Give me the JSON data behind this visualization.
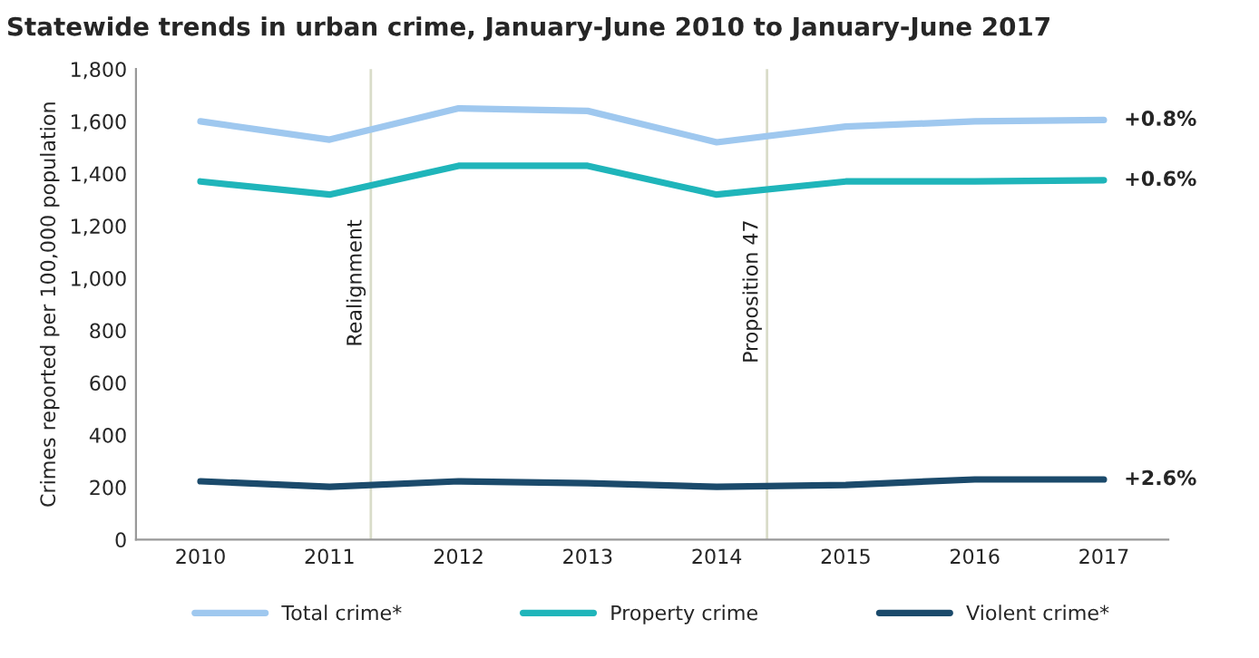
{
  "chart_data": {
    "type": "line",
    "title": "Statewide trends in urban crime, January-June 2010 to January-June 2017",
    "ylabel": "Crimes reported per 100,000 population",
    "x": [
      2010,
      2011,
      2012,
      2013,
      2014,
      2015,
      2016,
      2017
    ],
    "xlim": [
      2009.5,
      2017.5
    ],
    "xticks": [
      2010,
      2011,
      2012,
      2013,
      2014,
      2015,
      2016,
      2017
    ],
    "ylim": [
      0,
      1800
    ],
    "yticks": [
      {
        "value": 0,
        "label": "0"
      },
      {
        "value": 200,
        "label": "200"
      },
      {
        "value": 400,
        "label": "400"
      },
      {
        "value": 600,
        "label": "600"
      },
      {
        "value": 800,
        "label": "800"
      },
      {
        "value": 1000,
        "label": "1,000"
      },
      {
        "value": 1200,
        "label": "1,200"
      },
      {
        "value": 1400,
        "label": "1,400"
      },
      {
        "value": 1600,
        "label": "1,600"
      },
      {
        "value": 1800,
        "label": "1,800"
      }
    ],
    "series": [
      {
        "name": "Total crime*",
        "color": "#9fc8ef",
        "values": [
          1600,
          1530,
          1650,
          1640,
          1520,
          1580,
          1600,
          1605
        ]
      },
      {
        "name": "Property crime",
        "color": "#1fb5ba",
        "values": [
          1370,
          1320,
          1430,
          1430,
          1320,
          1370,
          1370,
          1375
        ]
      },
      {
        "name": "Violent crime*",
        "color": "#1b4a6b",
        "values": [
          223,
          202,
          223,
          216,
          202,
          209,
          230,
          230
        ]
      }
    ],
    "ref_lines": [
      {
        "axis": "x",
        "value": 2011.32,
        "label": "Realignment",
        "color": "#d9dcc9"
      },
      {
        "axis": "x",
        "value": 2014.39,
        "label": "Proposition 47",
        "color": "#d9dcc9"
      }
    ],
    "annotations": [
      "+0.8%",
      "+0.6%",
      "+2.6%"
    ],
    "legend": "bottom",
    "grid": false,
    "marker": "none",
    "line_style": "solid"
  }
}
